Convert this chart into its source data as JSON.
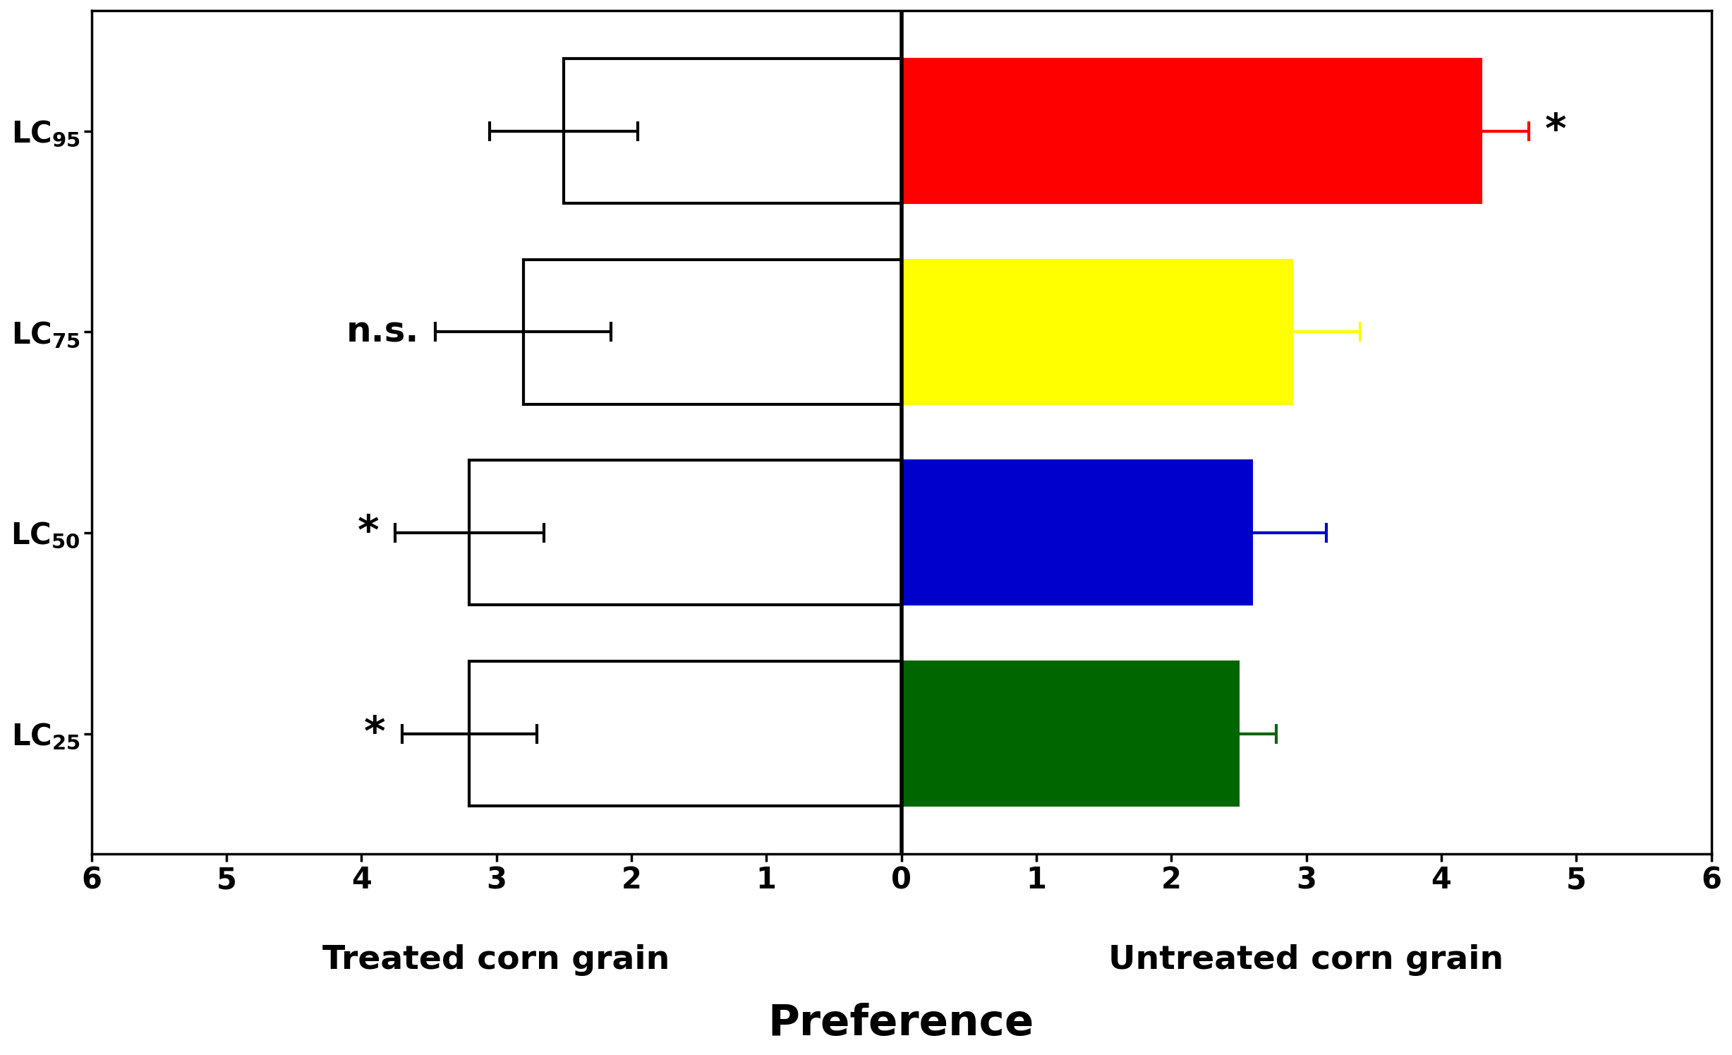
{
  "categories": [
    "LC$_{95}$",
    "LC$_{75}$",
    "LC$_{50}$",
    "LC$_{25}$"
  ],
  "treated_values": [
    -2.5,
    -2.8,
    -3.2,
    -3.2
  ],
  "treated_errors": [
    0.55,
    0.65,
    0.55,
    0.5
  ],
  "untreated_values": [
    4.3,
    2.9,
    2.6,
    2.5
  ],
  "untreated_errors": [
    0.35,
    0.5,
    0.55,
    0.28
  ],
  "untreated_colors": [
    "#ff0000",
    "#ffff00",
    "#0000cc",
    "#006600"
  ],
  "significance_left": [
    "",
    "n.s.",
    "*",
    "*"
  ],
  "significance_right": [
    "*",
    "",
    "",
    ""
  ],
  "xlim": [
    -6,
    6
  ],
  "bar_height": 0.72,
  "background_color": "#ffffff",
  "label_fontsize": 34,
  "tick_fontsize": 30,
  "ytick_fontsize": 36,
  "sig_fontsize": 42,
  "ns_fontsize": 36,
  "xlabel_fontsize": 44,
  "sublabel_fontsize": 34
}
